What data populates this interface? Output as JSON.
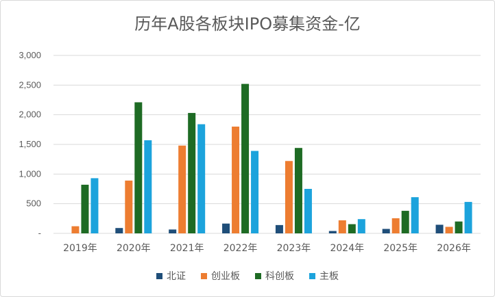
{
  "chart_data": {
    "type": "bar",
    "title": "历年A股各板块IPO募集资金-亿",
    "categories": [
      "2019年",
      "2020年",
      "2021年",
      "2022年",
      "2023年",
      "2024年",
      "2025年",
      "2026年"
    ],
    "series": [
      {
        "name": "北证",
        "color": "#1f4e79",
        "values": [
          0,
          90,
          65,
          165,
          140,
          40,
          75,
          145
        ]
      },
      {
        "name": "创业板",
        "color": "#ed7d31",
        "values": [
          120,
          890,
          1480,
          1800,
          1220,
          220,
          255,
          110
        ]
      },
      {
        "name": "科创板",
        "color": "#1e6b24",
        "values": [
          820,
          2210,
          2030,
          2520,
          1440,
          155,
          380,
          200
        ]
      },
      {
        "name": "主板",
        "color": "#1ca3dc",
        "values": [
          930,
          1570,
          1840,
          1390,
          750,
          240,
          610,
          530
        ]
      }
    ],
    "yticks": [
      "-",
      "500",
      "1,000",
      "1,500",
      "2,000",
      "2,500",
      "3,000"
    ],
    "ylim": [
      0,
      3000
    ],
    "grid": true,
    "legend": "bottom"
  }
}
